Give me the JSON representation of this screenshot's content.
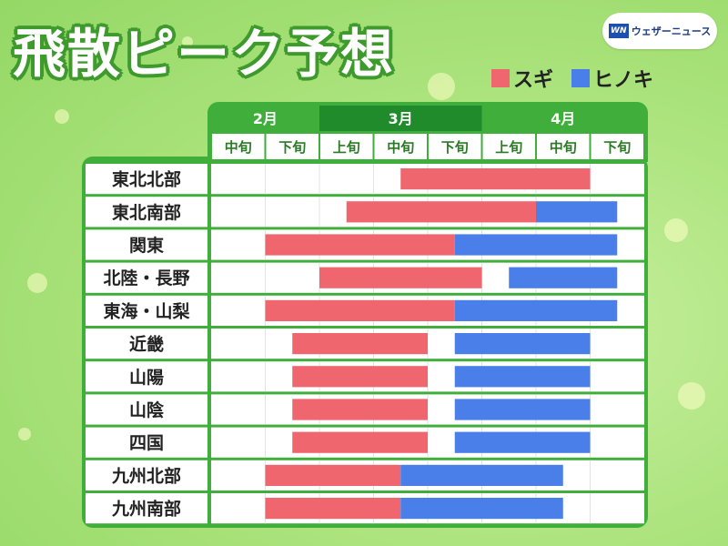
{
  "title": "飛散ピーク予想",
  "brand": {
    "logo_text": "WN",
    "name": "ウェザーニュース"
  },
  "legend": [
    {
      "label": "スギ",
      "color": "#f0666e"
    },
    {
      "label": "ヒノキ",
      "color": "#4a7fea"
    }
  ],
  "chart_data": {
    "type": "gantt",
    "months": [
      {
        "label": "2月",
        "span": [
          "中旬",
          "下旬"
        ]
      },
      {
        "label": "3月",
        "span": [
          "上旬",
          "中旬",
          "下旬"
        ]
      },
      {
        "label": "4月",
        "span": [
          "上旬",
          "中旬",
          "下旬"
        ]
      }
    ],
    "periods": [
      "中旬",
      "下旬",
      "上旬",
      "中旬",
      "下旬",
      "上旬",
      "中旬",
      "下旬"
    ],
    "period_unit": "period index (0 = 2月中旬 start, 8 = 4月下旬 end)",
    "series": [
      {
        "name": "スギ",
        "color": "#f0666e"
      },
      {
        "name": "ヒノキ",
        "color": "#4a7fea"
      }
    ],
    "rows": [
      {
        "region": "東北北部",
        "sugi": [
          3.5,
          7.0
        ],
        "hinoki": null
      },
      {
        "region": "東北南部",
        "sugi": [
          2.5,
          6.0
        ],
        "hinoki": [
          6.0,
          7.5
        ]
      },
      {
        "region": "関東",
        "sugi": [
          1.0,
          4.5
        ],
        "hinoki": [
          4.5,
          7.5
        ]
      },
      {
        "region": "北陸・長野",
        "sugi": [
          2.0,
          5.0
        ],
        "hinoki": [
          5.5,
          7.5
        ]
      },
      {
        "region": "東海・山梨",
        "sugi": [
          1.0,
          4.5
        ],
        "hinoki": [
          4.5,
          7.5
        ]
      },
      {
        "region": "近畿",
        "sugi": [
          1.5,
          4.0
        ],
        "hinoki": [
          4.5,
          7.0
        ]
      },
      {
        "region": "山陽",
        "sugi": [
          1.5,
          4.0
        ],
        "hinoki": [
          4.5,
          7.0
        ]
      },
      {
        "region": "山陰",
        "sugi": [
          1.5,
          4.0
        ],
        "hinoki": [
          4.5,
          7.0
        ]
      },
      {
        "region": "四国",
        "sugi": [
          1.5,
          4.0
        ],
        "hinoki": [
          4.5,
          7.0
        ]
      },
      {
        "region": "九州北部",
        "sugi": [
          1.0,
          3.5
        ],
        "hinoki": [
          3.5,
          6.5
        ]
      },
      {
        "region": "九州南部",
        "sugi": [
          1.0,
          3.5
        ],
        "hinoki": [
          3.5,
          6.5
        ]
      }
    ]
  }
}
